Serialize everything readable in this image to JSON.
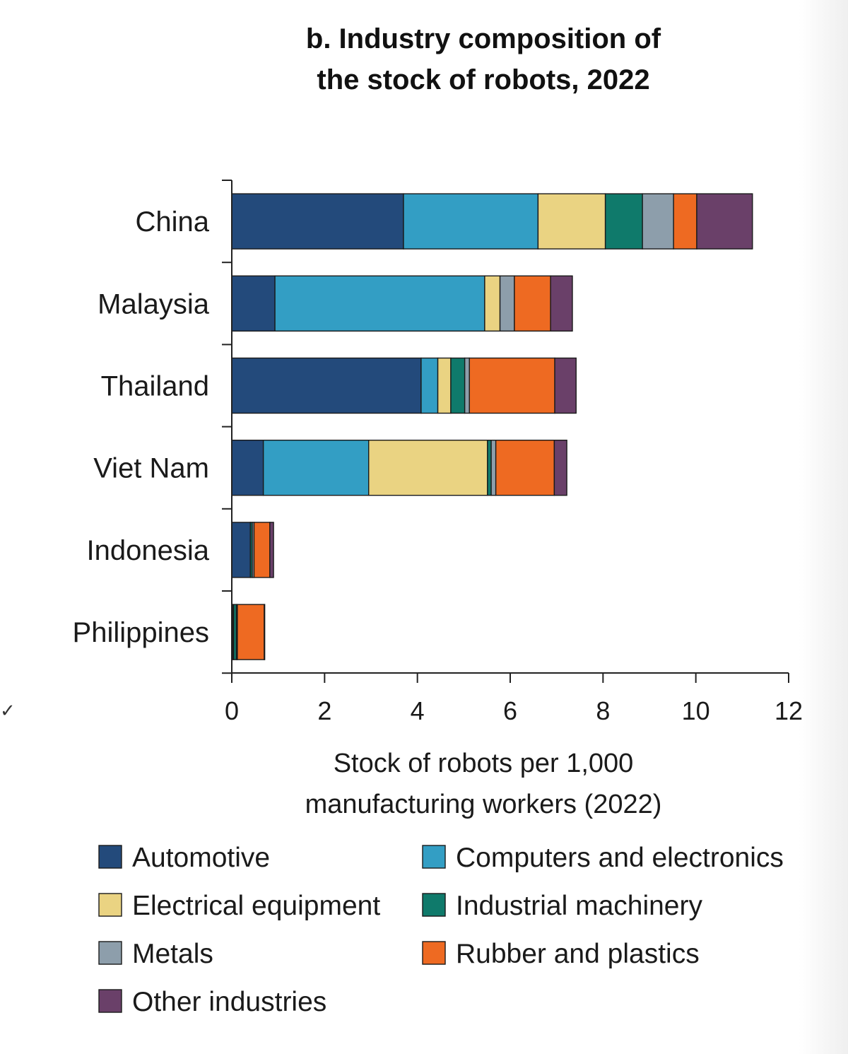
{
  "chart_data": {
    "type": "bar",
    "orientation": "horizontal",
    "stacked": true,
    "title": [
      "b. Industry composition of",
      "the stock of robots, 2022"
    ],
    "xlabel": [
      "Stock of robots per 1,000",
      "manufacturing workers (2022)"
    ],
    "ylabel": "",
    "xlim": [
      0,
      12
    ],
    "xticks": [
      "0",
      "2",
      "4",
      "6",
      "8",
      "10",
      "12"
    ],
    "grid": false,
    "legend_position": "bottom",
    "categories": [
      "China",
      "Malaysia",
      "Thailand",
      "Viet Nam",
      "Indonesia",
      "Philippines"
    ],
    "series": [
      {
        "name": "Automotive",
        "color": "#234a7b",
        "values": [
          3.7,
          0.93,
          4.08,
          0.68,
          0.4,
          0.02
        ]
      },
      {
        "name": "Computers and electronics",
        "color": "#339ec4",
        "values": [
          2.9,
          4.52,
          0.36,
          2.27,
          0.0,
          0.02
        ]
      },
      {
        "name": "Electrical equipment",
        "color": "#ead382",
        "values": [
          1.45,
          0.33,
          0.28,
          2.56,
          0.0,
          0.0
        ]
      },
      {
        "name": "Industrial machinery",
        "color": "#0f7a6b",
        "values": [
          0.8,
          0.0,
          0.3,
          0.08,
          0.04,
          0.06
        ]
      },
      {
        "name": "Metals",
        "color": "#8d9eab",
        "values": [
          0.67,
          0.31,
          0.1,
          0.1,
          0.04,
          0.02
        ]
      },
      {
        "name": "Rubber and plastics",
        "color": "#ee6a22",
        "values": [
          0.5,
          0.78,
          1.84,
          1.26,
          0.34,
          0.58
        ]
      },
      {
        "name": "Other industries",
        "color": "#6a4069",
        "values": [
          1.2,
          0.47,
          0.46,
          0.27,
          0.08,
          0.01
        ]
      }
    ]
  }
}
